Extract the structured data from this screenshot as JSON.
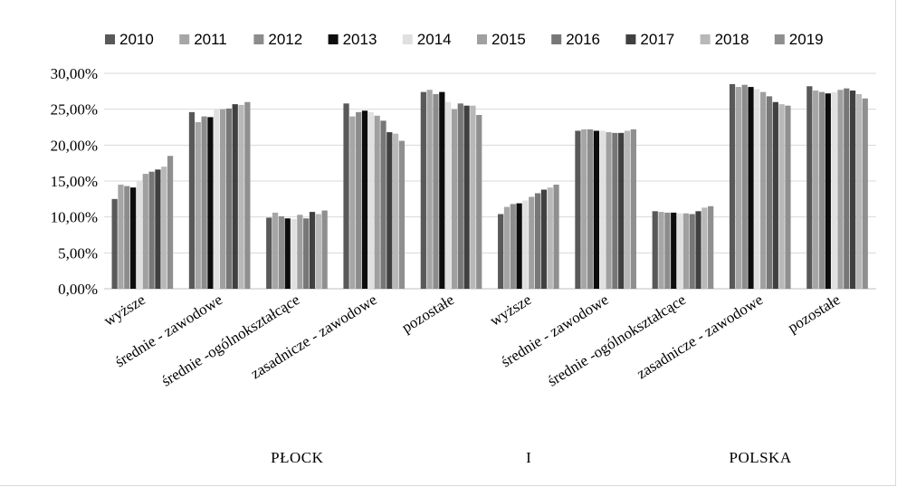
{
  "chart_data": {
    "type": "bar",
    "title": "",
    "xlabel": "",
    "ylabel": "",
    "ylim": [
      0,
      0.3
    ],
    "yticks": [
      "0,00%",
      "5,00%",
      "10,00%",
      "15,00%",
      "20,00%",
      "25,00%",
      "30,00%"
    ],
    "grid": true,
    "legend": "top",
    "categories": [
      "wyższe",
      "średnie - zawodowe",
      "średnie -ogólnokształcące",
      "zasadnicze - zawodowe",
      "pozostałe",
      "wyższe",
      "średnie - zawodowe",
      "średnie -ogólnokształcące",
      "zasadnicze - zawodowe",
      "pozostałe"
    ],
    "groups": [
      {
        "label": "PŁOCK",
        "span": [
          0,
          4
        ]
      },
      {
        "label": "I",
        "span": [
          5,
          5
        ]
      },
      {
        "label": "POLSKA",
        "span": [
          7,
          9
        ]
      }
    ],
    "series": [
      {
        "name": "2010",
        "color": "#595959",
        "values": [
          0.125,
          0.246,
          0.099,
          0.258,
          0.274,
          0.104,
          0.22,
          0.108,
          0.285,
          0.282
        ]
      },
      {
        "name": "2011",
        "color": "#a6a6a6",
        "values": [
          0.145,
          0.232,
          0.106,
          0.24,
          0.277,
          0.114,
          0.222,
          0.107,
          0.281,
          0.276
        ]
      },
      {
        "name": "2012",
        "color": "#8c8c8c",
        "values": [
          0.143,
          0.24,
          0.101,
          0.246,
          0.271,
          0.118,
          0.222,
          0.106,
          0.284,
          0.274
        ]
      },
      {
        "name": "2013",
        "color": "#0d0d0d",
        "values": [
          0.141,
          0.239,
          0.098,
          0.248,
          0.274,
          0.119,
          0.22,
          0.106,
          0.281,
          0.272
        ]
      },
      {
        "name": "2014",
        "color": "#e0e0e0",
        "values": [
          0.15,
          0.25,
          0.097,
          0.246,
          0.26,
          0.123,
          0.22,
          0.105,
          0.278,
          0.274
        ]
      },
      {
        "name": "2015",
        "color": "#a0a0a0",
        "values": [
          0.16,
          0.25,
          0.103,
          0.241,
          0.25,
          0.128,
          0.218,
          0.105,
          0.274,
          0.277
        ]
      },
      {
        "name": "2016",
        "color": "#777777",
        "values": [
          0.163,
          0.251,
          0.098,
          0.234,
          0.258,
          0.133,
          0.217,
          0.104,
          0.268,
          0.279
        ]
      },
      {
        "name": "2017",
        "color": "#404040",
        "values": [
          0.166,
          0.257,
          0.107,
          0.218,
          0.255,
          0.138,
          0.217,
          0.108,
          0.26,
          0.276
        ]
      },
      {
        "name": "2018",
        "color": "#b8b8b8",
        "values": [
          0.17,
          0.256,
          0.104,
          0.216,
          0.255,
          0.141,
          0.22,
          0.113,
          0.257,
          0.271
        ]
      },
      {
        "name": "2019",
        "color": "#8f8f8f",
        "values": [
          0.185,
          0.26,
          0.109,
          0.206,
          0.242,
          0.145,
          0.222,
          0.115,
          0.255,
          0.265
        ]
      }
    ]
  }
}
